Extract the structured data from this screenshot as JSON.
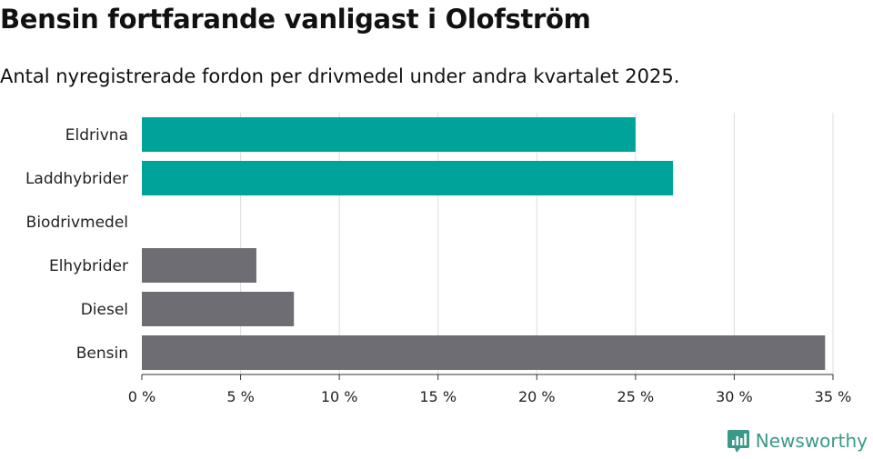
{
  "title": "Bensin fortfarande vanligast i Olofström",
  "subtitle": "Antal nyregistrerade fordon per drivmedel under andra kvartalet 2025.",
  "brand": "Newsworthy",
  "colors": {
    "highlight": "#00a39a",
    "other": "#6e6d73",
    "grid": "#dddddd",
    "axis": "#333333",
    "brand": "#3a9a8a"
  },
  "chart_data": {
    "type": "bar",
    "orientation": "horizontal",
    "categories": [
      "Eldrivna",
      "Laddhybrider",
      "Biodrivmedel",
      "Elhybrider",
      "Diesel",
      "Bensin"
    ],
    "values": [
      25.0,
      26.9,
      0,
      5.8,
      7.7,
      34.6
    ],
    "highlight": [
      true,
      true,
      false,
      false,
      false,
      false
    ],
    "xlim": [
      0,
      35
    ],
    "xticks": [
      0,
      5,
      10,
      15,
      20,
      25,
      30,
      35
    ],
    "xtick_labels": [
      "0 %",
      "5 %",
      "10 %",
      "15 %",
      "20 %",
      "25 %",
      "30 %",
      "35 %"
    ],
    "grid": "vertical",
    "unit": "%"
  }
}
